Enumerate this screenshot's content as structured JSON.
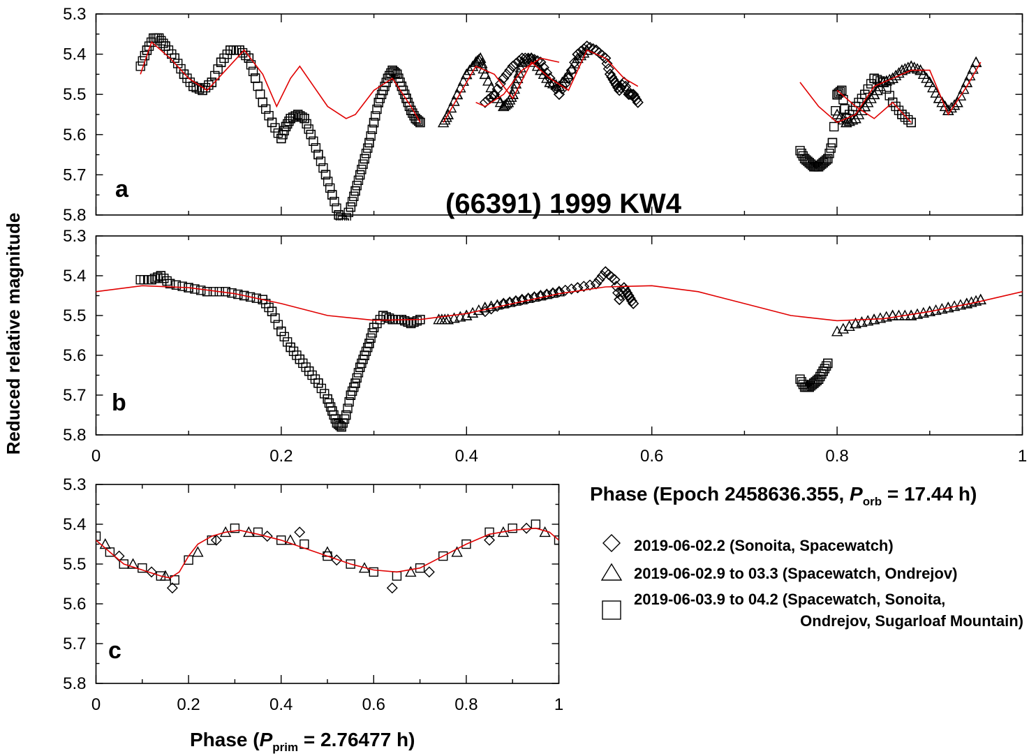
{
  "figure": {
    "title": "(66391) 1999 KW4",
    "ylabel": "Reduced relative magnitude",
    "xlabel_orb": {
      "prefix": "Phase (Epoch 2458636.355, ",
      "symbol": "P",
      "sub": "orb",
      "suffix": " = 17.44 h)"
    },
    "xlabel_prim": {
      "prefix": "Phase (",
      "symbol": "P",
      "sub": "prim",
      "suffix": " = 2.76477 h)"
    },
    "panel_labels": [
      "a",
      "b",
      "c"
    ],
    "fit_color": "#e00000",
    "marker_color": "#000000",
    "legend": [
      {
        "marker": "diamond",
        "lines": [
          "2019-06-02.2 (Sonoita, Spacewatch)"
        ]
      },
      {
        "marker": "triangle",
        "lines": [
          "2019-06-02.9 to 03.3 (Spacewatch, Ondrejov)"
        ]
      },
      {
        "marker": "square",
        "lines": [
          "2019-06-03.9 to 04.2 (Spacewatch, Sonoita,",
          "Ondrejov, Sugarloaf Mountain)"
        ]
      }
    ]
  },
  "chart_data": [
    {
      "panel": "a",
      "type": "scatter",
      "xlim": [
        0,
        1
      ],
      "ylim": [
        5.3,
        5.8
      ],
      "y_inverted": true,
      "yticks": [
        "5.3",
        "5.4",
        "5.5",
        "5.6",
        "5.7",
        "5.8"
      ],
      "series": [
        {
          "marker": "square",
          "x": [
            0.048,
            0.055,
            0.062,
            0.068,
            0.075,
            0.085,
            0.095,
            0.105,
            0.115,
            0.125,
            0.135,
            0.145,
            0.155,
            0.165,
            0.172,
            0.18,
            0.19,
            0.2,
            0.205,
            0.21,
            0.218,
            0.225,
            0.232,
            0.24,
            0.248,
            0.255,
            0.262,
            0.268,
            0.275,
            0.28,
            0.285,
            0.29,
            0.295,
            0.3,
            0.305,
            0.31,
            0.315,
            0.32,
            0.325,
            0.33,
            0.335,
            0.34,
            0.345,
            0.35,
            0.76,
            0.765,
            0.77,
            0.775,
            0.78,
            0.785,
            0.79,
            0.795,
            0.8,
            0.805,
            0.81,
            0.82,
            0.83,
            0.84,
            0.85,
            0.86,
            0.87,
            0.88
          ],
          "y": [
            5.43,
            5.39,
            5.36,
            5.36,
            5.38,
            5.41,
            5.45,
            5.48,
            5.49,
            5.47,
            5.42,
            5.39,
            5.39,
            5.41,
            5.46,
            5.52,
            5.57,
            5.61,
            5.58,
            5.56,
            5.55,
            5.56,
            5.6,
            5.65,
            5.7,
            5.75,
            5.8,
            5.82,
            5.78,
            5.74,
            5.7,
            5.66,
            5.62,
            5.57,
            5.52,
            5.49,
            5.46,
            5.44,
            5.45,
            5.48,
            5.51,
            5.54,
            5.56,
            5.57,
            5.64,
            5.66,
            5.67,
            5.68,
            5.68,
            5.67,
            5.66,
            5.62,
            5.5,
            5.49,
            5.56,
            5.53,
            5.5,
            5.46,
            5.47,
            5.52,
            5.55,
            5.57
          ]
        },
        {
          "marker": "triangle",
          "x": [
            0.375,
            0.38,
            0.39,
            0.4,
            0.41,
            0.415,
            0.42,
            0.43,
            0.44,
            0.445,
            0.45,
            0.455,
            0.46,
            0.47,
            0.48,
            0.49,
            0.5,
            0.51,
            0.52,
            0.53,
            0.8,
            0.81,
            0.82,
            0.83,
            0.84,
            0.85,
            0.86,
            0.87,
            0.88,
            0.89,
            0.9,
            0.91,
            0.92,
            0.93,
            0.94,
            0.95
          ],
          "y": [
            5.57,
            5.55,
            5.5,
            5.45,
            5.42,
            5.41,
            5.45,
            5.5,
            5.53,
            5.52,
            5.5,
            5.46,
            5.42,
            5.41,
            5.44,
            5.47,
            5.48,
            5.45,
            5.41,
            5.39,
            5.55,
            5.57,
            5.56,
            5.53,
            5.5,
            5.47,
            5.46,
            5.44,
            5.43,
            5.44,
            5.47,
            5.51,
            5.54,
            5.52,
            5.47,
            5.42
          ]
        },
        {
          "marker": "diamond",
          "x": [
            0.42,
            0.43,
            0.44,
            0.45,
            0.46,
            0.47,
            0.48,
            0.49,
            0.5,
            0.51,
            0.52,
            0.53,
            0.54,
            0.55,
            0.555,
            0.56,
            0.565,
            0.57,
            0.575,
            0.58,
            0.585
          ],
          "y": [
            5.52,
            5.5,
            5.46,
            5.43,
            5.41,
            5.41,
            5.42,
            5.46,
            5.5,
            5.46,
            5.4,
            5.38,
            5.39,
            5.41,
            5.45,
            5.47,
            5.49,
            5.47,
            5.5,
            5.5,
            5.52
          ]
        }
      ],
      "fit": [
        {
          "x": [
            0.048,
            0.06,
            0.08,
            0.1,
            0.12,
            0.14,
            0.16,
            0.18,
            0.195,
            0.21,
            0.22,
            0.235,
            0.25,
            0.27,
            0.28,
            0.3,
            0.32,
            0.34,
            0.35
          ],
          "y": [
            5.45,
            5.37,
            5.41,
            5.46,
            5.49,
            5.44,
            5.39,
            5.45,
            5.53,
            5.46,
            5.43,
            5.48,
            5.53,
            5.56,
            5.55,
            5.49,
            5.46,
            5.53,
            5.57
          ]
        },
        {
          "x": [
            0.375,
            0.39,
            0.41,
            0.43,
            0.45,
            0.47,
            0.49,
            0.51,
            0.53,
            0.55,
            0.57,
            0.585
          ],
          "y": [
            5.57,
            5.51,
            5.43,
            5.45,
            5.51,
            5.42,
            5.46,
            5.49,
            5.39,
            5.41,
            5.46,
            5.48
          ]
        },
        {
          "x": [
            0.41,
            0.42,
            0.44,
            0.46,
            0.48,
            0.5
          ],
          "y": [
            5.52,
            5.53,
            5.5,
            5.44,
            5.41,
            5.42
          ]
        },
        {
          "x": [
            0.76,
            0.78,
            0.8,
            0.82,
            0.84,
            0.86,
            0.88,
            0.9,
            0.92,
            0.94,
            0.955
          ],
          "y": [
            5.47,
            5.53,
            5.57,
            5.55,
            5.48,
            5.46,
            5.44,
            5.44,
            5.55,
            5.48,
            5.42
          ]
        },
        {
          "x": [
            0.8,
            0.82,
            0.84,
            0.86,
            0.88
          ],
          "y": [
            5.49,
            5.53,
            5.56,
            5.52,
            5.57
          ]
        }
      ]
    },
    {
      "panel": "b",
      "type": "scatter",
      "xlim": [
        0,
        1
      ],
      "ylim": [
        5.3,
        5.8
      ],
      "y_inverted": true,
      "yticks": [
        "5.3",
        "5.4",
        "5.5",
        "5.6",
        "5.7",
        "5.8"
      ],
      "xticks": [
        "0",
        "0.2",
        "0.4",
        "0.6",
        "0.8",
        "1"
      ],
      "series": [
        {
          "marker": "square",
          "x": [
            0.048,
            0.06,
            0.07,
            0.08,
            0.1,
            0.12,
            0.14,
            0.16,
            0.18,
            0.19,
            0.2,
            0.21,
            0.22,
            0.23,
            0.24,
            0.25,
            0.255,
            0.26,
            0.265,
            0.27,
            0.275,
            0.28,
            0.285,
            0.29,
            0.295,
            0.3,
            0.31,
            0.32,
            0.33,
            0.34,
            0.35,
            0.76,
            0.765,
            0.77,
            0.775,
            0.78,
            0.785,
            0.79
          ],
          "y": [
            5.41,
            5.41,
            5.4,
            5.42,
            5.43,
            5.44,
            5.44,
            5.45,
            5.46,
            5.49,
            5.54,
            5.58,
            5.61,
            5.64,
            5.67,
            5.71,
            5.74,
            5.77,
            5.78,
            5.75,
            5.7,
            5.67,
            5.63,
            5.6,
            5.57,
            5.53,
            5.5,
            5.51,
            5.51,
            5.52,
            5.51,
            5.66,
            5.68,
            5.68,
            5.67,
            5.66,
            5.64,
            5.62
          ]
        },
        {
          "marker": "triangle",
          "x": [
            0.37,
            0.38,
            0.4,
            0.42,
            0.44,
            0.46,
            0.48,
            0.5,
            0.8,
            0.82,
            0.84,
            0.86,
            0.88,
            0.9,
            0.92,
            0.94,
            0.955
          ],
          "y": [
            5.51,
            5.51,
            5.5,
            5.48,
            5.47,
            5.46,
            5.45,
            5.44,
            5.54,
            5.52,
            5.51,
            5.5,
            5.5,
            5.49,
            5.48,
            5.47,
            5.46
          ]
        },
        {
          "marker": "diamond",
          "x": [
            0.42,
            0.44,
            0.46,
            0.48,
            0.5,
            0.52,
            0.54,
            0.55,
            0.56,
            0.565,
            0.57,
            0.575,
            0.58
          ],
          "y": [
            5.49,
            5.47,
            5.46,
            5.45,
            5.44,
            5.43,
            5.42,
            5.39,
            5.41,
            5.46,
            5.43,
            5.45,
            5.47
          ]
        }
      ],
      "fit": [
        {
          "x": [
            0,
            0.05,
            0.1,
            0.15,
            0.2,
            0.25,
            0.3,
            0.35,
            0.4,
            0.45,
            0.5,
            0.55,
            0.6,
            0.65,
            0.7,
            0.75,
            0.8,
            0.85,
            0.9,
            0.95,
            1.0
          ],
          "y": [
            5.44,
            5.425,
            5.43,
            5.445,
            5.47,
            5.5,
            5.512,
            5.51,
            5.495,
            5.47,
            5.445,
            5.428,
            5.425,
            5.44,
            5.47,
            5.5,
            5.513,
            5.508,
            5.49,
            5.467,
            5.44
          ]
        }
      ]
    },
    {
      "panel": "c",
      "type": "scatter",
      "xlim": [
        0,
        1
      ],
      "ylim": [
        5.3,
        5.8
      ],
      "y_inverted": true,
      "yticks": [
        "5.3",
        "5.4",
        "5.5",
        "5.6",
        "5.7",
        "5.8"
      ],
      "xticks": [
        "0",
        "0.2",
        "0.4",
        "0.6",
        "0.8",
        "1"
      ],
      "series": [
        {
          "marker": "square",
          "x": [
            0.0,
            0.03,
            0.06,
            0.1,
            0.14,
            0.17,
            0.2,
            0.25,
            0.3,
            0.35,
            0.4,
            0.45,
            0.5,
            0.55,
            0.6,
            0.65,
            0.7,
            0.75,
            0.8,
            0.85,
            0.9,
            0.95,
            1.0
          ],
          "y": [
            5.43,
            5.47,
            5.5,
            5.51,
            5.53,
            5.54,
            5.49,
            5.44,
            5.41,
            5.42,
            5.44,
            5.45,
            5.48,
            5.5,
            5.52,
            5.53,
            5.51,
            5.48,
            5.45,
            5.42,
            5.41,
            5.4,
            5.44
          ]
        },
        {
          "marker": "triangle",
          "x": [
            0.02,
            0.08,
            0.15,
            0.22,
            0.28,
            0.33,
            0.42,
            0.5,
            0.58,
            0.68,
            0.78,
            0.88,
            0.97
          ],
          "y": [
            5.45,
            5.5,
            5.53,
            5.47,
            5.42,
            5.42,
            5.44,
            5.47,
            5.51,
            5.52,
            5.47,
            5.42,
            5.42
          ]
        },
        {
          "marker": "diamond",
          "x": [
            0.05,
            0.12,
            0.165,
            0.26,
            0.37,
            0.44,
            0.52,
            0.64,
            0.72,
            0.85,
            0.93
          ],
          "y": [
            5.48,
            5.52,
            5.56,
            5.44,
            5.43,
            5.42,
            5.49,
            5.56,
            5.52,
            5.44,
            5.41
          ]
        }
      ],
      "fit": [
        {
          "x": [
            0,
            0.03,
            0.06,
            0.1,
            0.14,
            0.16,
            0.18,
            0.2,
            0.22,
            0.25,
            0.28,
            0.31,
            0.35,
            0.4,
            0.45,
            0.5,
            0.55,
            0.6,
            0.65,
            0.7,
            0.75,
            0.8,
            0.85,
            0.9,
            0.95,
            0.98,
            1.0
          ],
          "y": [
            5.44,
            5.47,
            5.5,
            5.515,
            5.53,
            5.535,
            5.52,
            5.48,
            5.45,
            5.43,
            5.42,
            5.415,
            5.425,
            5.44,
            5.46,
            5.48,
            5.5,
            5.515,
            5.52,
            5.51,
            5.48,
            5.45,
            5.425,
            5.415,
            5.41,
            5.42,
            5.44
          ]
        }
      ]
    }
  ]
}
